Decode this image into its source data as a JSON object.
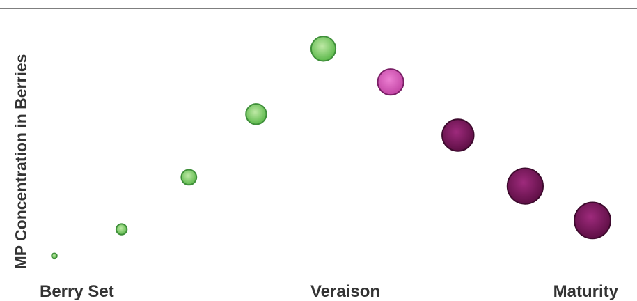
{
  "chart_data": {
    "type": "scatter",
    "title": "",
    "xlabel": "",
    "ylabel": "MP Concentration in Berries",
    "x_tick_labels": [
      "Berry Set",
      "Veraison",
      "Maturity"
    ],
    "grid": false,
    "legend": "none",
    "colors": {
      "green_center": "#bfe9a6",
      "green_edge": "#5bb84a",
      "green_stroke": "#3f8f3a",
      "pink_center": "#ec7fd2",
      "pink_edge": "#c245a4",
      "pink_stroke": "#7a1f66",
      "purple_center": "#9e2a7c",
      "purple_edge": "#5e0f45",
      "purple_stroke": "#3e0a2e",
      "rule": "#555555",
      "text": "#333333"
    },
    "points": [
      {
        "x": 1,
        "y": 0.8,
        "size": 0.12,
        "color": "green"
      },
      {
        "x": 2,
        "y": 3.2,
        "size": 0.24,
        "color": "green"
      },
      {
        "x": 3,
        "y": 7.9,
        "size": 0.34,
        "color": "green"
      },
      {
        "x": 4,
        "y": 13.6,
        "size": 0.46,
        "color": "green"
      },
      {
        "x": 5,
        "y": 19.5,
        "size": 0.55,
        "color": "green"
      },
      {
        "x": 6,
        "y": 16.5,
        "size": 0.58,
        "color": "pink"
      },
      {
        "x": 7,
        "y": 11.7,
        "size": 0.71,
        "color": "purple"
      },
      {
        "x": 8,
        "y": 7.1,
        "size": 0.8,
        "color": "purple"
      },
      {
        "x": 9,
        "y": 4.0,
        "size": 0.81,
        "color": "purple"
      }
    ]
  }
}
